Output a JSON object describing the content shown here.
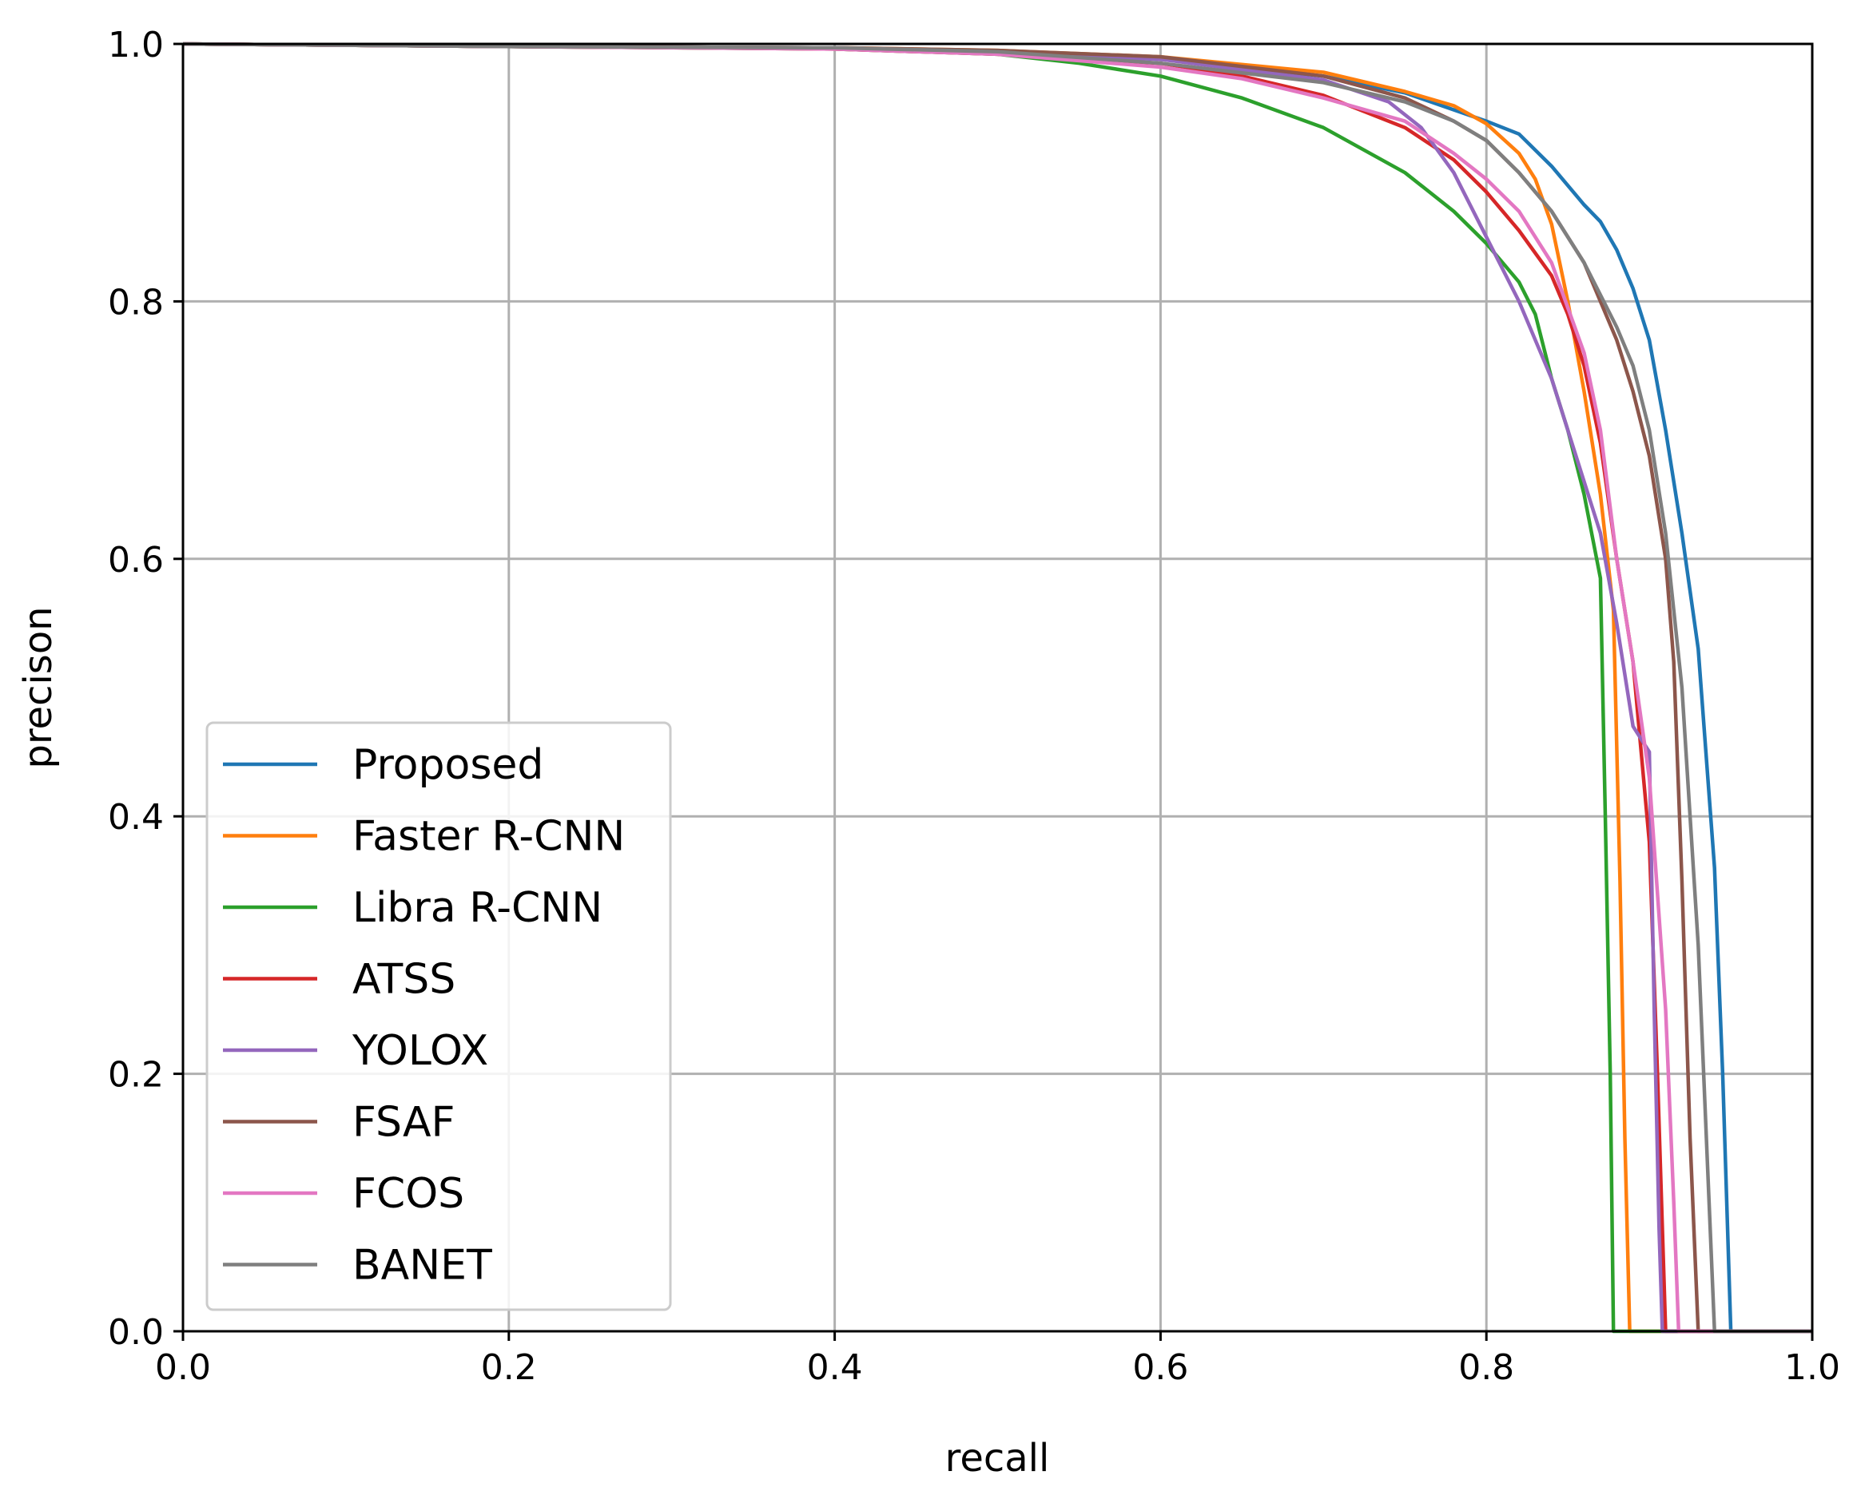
{
  "chart_data": {
    "type": "line",
    "title": "",
    "xlabel": "recall",
    "ylabel": "precison",
    "xlim": [
      0.0,
      1.0
    ],
    "ylim": [
      0.0,
      1.0
    ],
    "xticks": [
      "0.0",
      "0.2",
      "0.4",
      "0.6",
      "0.8",
      "1.0"
    ],
    "yticks": [
      "0.0",
      "0.2",
      "0.4",
      "0.6",
      "0.8",
      "1.0"
    ],
    "grid": true,
    "legend_position": "lower-left",
    "series": [
      {
        "name": "Proposed",
        "color": "#1f77b4",
        "points": [
          [
            0,
            1.0
          ],
          [
            0.2,
            0.998
          ],
          [
            0.4,
            0.997
          ],
          [
            0.5,
            0.994
          ],
          [
            0.6,
            0.988
          ],
          [
            0.7,
            0.975
          ],
          [
            0.75,
            0.962
          ],
          [
            0.8,
            0.94
          ],
          [
            0.82,
            0.93
          ],
          [
            0.84,
            0.905
          ],
          [
            0.86,
            0.875
          ],
          [
            0.87,
            0.862
          ],
          [
            0.88,
            0.84
          ],
          [
            0.89,
            0.81
          ],
          [
            0.9,
            0.77
          ],
          [
            0.91,
            0.7
          ],
          [
            0.92,
            0.62
          ],
          [
            0.93,
            0.53
          ],
          [
            0.94,
            0.36
          ],
          [
            0.945,
            0.2
          ],
          [
            0.95,
            0.0
          ],
          [
            1.0,
            0.0
          ]
        ]
      },
      {
        "name": "Faster R-CNN",
        "color": "#ff7f0e",
        "points": [
          [
            0,
            1.0
          ],
          [
            0.2,
            0.998
          ],
          [
            0.4,
            0.997
          ],
          [
            0.5,
            0.995
          ],
          [
            0.6,
            0.99
          ],
          [
            0.7,
            0.978
          ],
          [
            0.75,
            0.963
          ],
          [
            0.78,
            0.952
          ],
          [
            0.8,
            0.938
          ],
          [
            0.82,
            0.915
          ],
          [
            0.83,
            0.895
          ],
          [
            0.84,
            0.86
          ],
          [
            0.85,
            0.8
          ],
          [
            0.86,
            0.73
          ],
          [
            0.87,
            0.65
          ],
          [
            0.878,
            0.56
          ],
          [
            0.882,
            0.35
          ],
          [
            0.885,
            0.15
          ],
          [
            0.888,
            0.0
          ],
          [
            1.0,
            0.0
          ]
        ]
      },
      {
        "name": "Libra R-CNN",
        "color": "#2ca02c",
        "points": [
          [
            0,
            1.0
          ],
          [
            0.2,
            0.998
          ],
          [
            0.4,
            0.996
          ],
          [
            0.5,
            0.992
          ],
          [
            0.55,
            0.985
          ],
          [
            0.6,
            0.975
          ],
          [
            0.65,
            0.958
          ],
          [
            0.7,
            0.935
          ],
          [
            0.75,
            0.9
          ],
          [
            0.78,
            0.87
          ],
          [
            0.8,
            0.845
          ],
          [
            0.82,
            0.815
          ],
          [
            0.83,
            0.79
          ],
          [
            0.84,
            0.74
          ],
          [
            0.85,
            0.7
          ],
          [
            0.86,
            0.65
          ],
          [
            0.87,
            0.585
          ],
          [
            0.873,
            0.4
          ],
          [
            0.876,
            0.2
          ],
          [
            0.878,
            0.0
          ],
          [
            1.0,
            0.0
          ]
        ]
      },
      {
        "name": "ATSS",
        "color": "#d62728",
        "points": [
          [
            0,
            1.0
          ],
          [
            0.2,
            0.998
          ],
          [
            0.4,
            0.996
          ],
          [
            0.5,
            0.992
          ],
          [
            0.6,
            0.985
          ],
          [
            0.65,
            0.975
          ],
          [
            0.7,
            0.96
          ],
          [
            0.75,
            0.935
          ],
          [
            0.78,
            0.91
          ],
          [
            0.8,
            0.885
          ],
          [
            0.82,
            0.855
          ],
          [
            0.84,
            0.82
          ],
          [
            0.85,
            0.79
          ],
          [
            0.86,
            0.75
          ],
          [
            0.87,
            0.69
          ],
          [
            0.88,
            0.6
          ],
          [
            0.89,
            0.52
          ],
          [
            0.9,
            0.38
          ],
          [
            0.905,
            0.2
          ],
          [
            0.91,
            0.0
          ],
          [
            1.0,
            0.0
          ]
        ]
      },
      {
        "name": "YOLOX",
        "color": "#9467bd",
        "points": [
          [
            0,
            1.0
          ],
          [
            0.2,
            0.998
          ],
          [
            0.4,
            0.997
          ],
          [
            0.5,
            0.994
          ],
          [
            0.6,
            0.988
          ],
          [
            0.7,
            0.972
          ],
          [
            0.74,
            0.955
          ],
          [
            0.76,
            0.935
          ],
          [
            0.78,
            0.9
          ],
          [
            0.8,
            0.85
          ],
          [
            0.82,
            0.8
          ],
          [
            0.84,
            0.74
          ],
          [
            0.85,
            0.7
          ],
          [
            0.86,
            0.66
          ],
          [
            0.87,
            0.62
          ],
          [
            0.88,
            0.55
          ],
          [
            0.89,
            0.47
          ],
          [
            0.9,
            0.45
          ],
          [
            0.903,
            0.25
          ],
          [
            0.906,
            0.08
          ],
          [
            0.908,
            0.0
          ],
          [
            1.0,
            0.0
          ]
        ]
      },
      {
        "name": "FSAF",
        "color": "#8c564b",
        "points": [
          [
            0,
            1.0
          ],
          [
            0.2,
            0.998
          ],
          [
            0.4,
            0.997
          ],
          [
            0.5,
            0.995
          ],
          [
            0.6,
            0.99
          ],
          [
            0.7,
            0.975
          ],
          [
            0.75,
            0.958
          ],
          [
            0.78,
            0.94
          ],
          [
            0.8,
            0.925
          ],
          [
            0.82,
            0.9
          ],
          [
            0.84,
            0.87
          ],
          [
            0.86,
            0.83
          ],
          [
            0.88,
            0.77
          ],
          [
            0.89,
            0.73
          ],
          [
            0.9,
            0.68
          ],
          [
            0.91,
            0.6
          ],
          [
            0.915,
            0.52
          ],
          [
            0.92,
            0.35
          ],
          [
            0.925,
            0.15
          ],
          [
            0.93,
            0.0
          ],
          [
            1.0,
            0.0
          ]
        ]
      },
      {
        "name": "FCOS",
        "color": "#e377c2",
        "points": [
          [
            0,
            1.0
          ],
          [
            0.2,
            0.998
          ],
          [
            0.4,
            0.996
          ],
          [
            0.5,
            0.992
          ],
          [
            0.6,
            0.982
          ],
          [
            0.65,
            0.973
          ],
          [
            0.7,
            0.958
          ],
          [
            0.75,
            0.94
          ],
          [
            0.78,
            0.915
          ],
          [
            0.8,
            0.895
          ],
          [
            0.82,
            0.87
          ],
          [
            0.84,
            0.83
          ],
          [
            0.86,
            0.76
          ],
          [
            0.87,
            0.7
          ],
          [
            0.88,
            0.6
          ],
          [
            0.89,
            0.52
          ],
          [
            0.9,
            0.43
          ],
          [
            0.91,
            0.25
          ],
          [
            0.915,
            0.1
          ],
          [
            0.918,
            0.0
          ],
          [
            1.0,
            0.0
          ]
        ]
      },
      {
        "name": "BANET",
        "color": "#7f7f7f",
        "points": [
          [
            0,
            1.0
          ],
          [
            0.2,
            0.998
          ],
          [
            0.4,
            0.997
          ],
          [
            0.5,
            0.994
          ],
          [
            0.6,
            0.985
          ],
          [
            0.7,
            0.97
          ],
          [
            0.75,
            0.955
          ],
          [
            0.78,
            0.94
          ],
          [
            0.8,
            0.925
          ],
          [
            0.82,
            0.9
          ],
          [
            0.84,
            0.87
          ],
          [
            0.86,
            0.83
          ],
          [
            0.88,
            0.78
          ],
          [
            0.89,
            0.75
          ],
          [
            0.9,
            0.7
          ],
          [
            0.91,
            0.62
          ],
          [
            0.92,
            0.5
          ],
          [
            0.93,
            0.3
          ],
          [
            0.935,
            0.15
          ],
          [
            0.94,
            0.0
          ],
          [
            1.0,
            0.0
          ]
        ]
      }
    ]
  }
}
